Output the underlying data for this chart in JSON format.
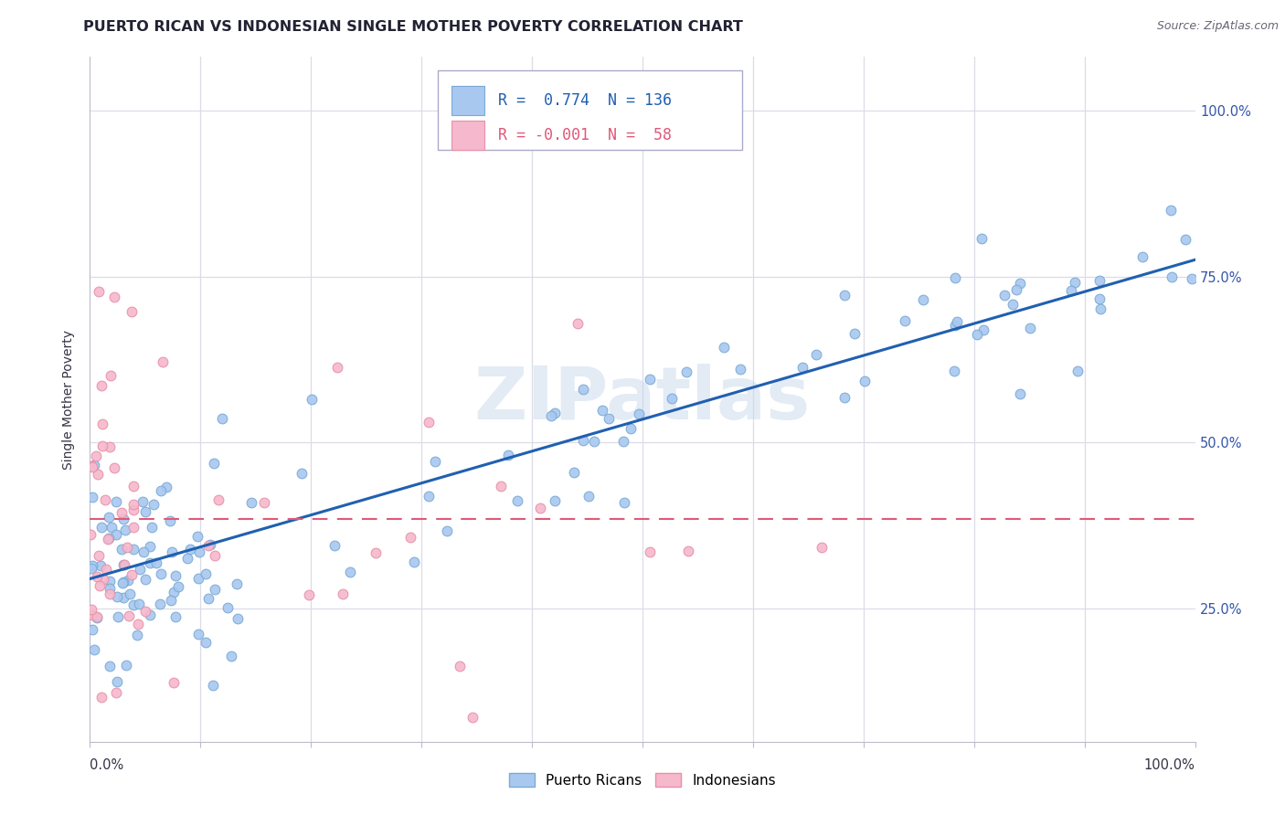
{
  "title": "PUERTO RICAN VS INDONESIAN SINGLE MOTHER POVERTY CORRELATION CHART",
  "source": "Source: ZipAtlas.com",
  "ylabel": "Single Mother Poverty",
  "pr_color": "#a8c8f0",
  "pr_edge_color": "#7baad4",
  "indo_color": "#f5b8cc",
  "indo_edge_color": "#e890a8",
  "pr_line_color": "#2060b0",
  "indo_line_color": "#e05878",
  "watermark": "ZIPatlas",
  "background_color": "#ffffff",
  "grid_color": "#dcdce8",
  "xlim": [
    0.0,
    1.0
  ],
  "ylim": [
    0.05,
    1.08
  ],
  "ytick_values": [
    0.25,
    0.5,
    0.75,
    1.0
  ],
  "ytick_labels": [
    "25.0%",
    "50.0%",
    "75.0%",
    "100.0%"
  ],
  "pr_trend_x": [
    0.0,
    1.0
  ],
  "pr_trend_y": [
    0.295,
    0.775
  ],
  "indo_trend_y": 0.385,
  "title_fontsize": 11.5,
  "axis_label_fontsize": 10,
  "tick_label_fontsize": 10.5,
  "legend_fontsize": 12,
  "source_fontsize": 9
}
